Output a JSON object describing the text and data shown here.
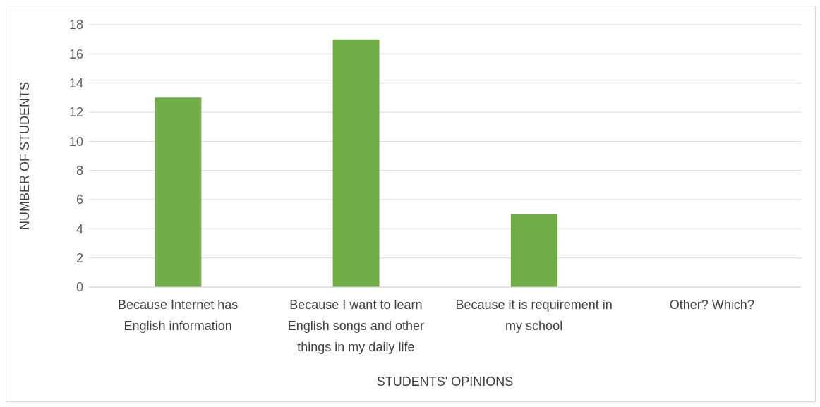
{
  "chart_data": {
    "type": "bar",
    "xlabel": "STUDENTS' OPINIONS",
    "ylabel": "NUMBER OF STUDENTS",
    "categories": [
      "Because Internet has English information",
      "Because I want to learn English songs and other things in my daily life",
      "Because it is requirement in my school",
      "Other? Which?"
    ],
    "values": [
      13,
      17,
      5,
      0
    ],
    "color": "#70ad47",
    "ylim": [
      0,
      18
    ],
    "yticks": [
      0,
      2,
      4,
      6,
      8,
      10,
      12,
      14,
      16,
      18
    ],
    "grid": "y"
  }
}
